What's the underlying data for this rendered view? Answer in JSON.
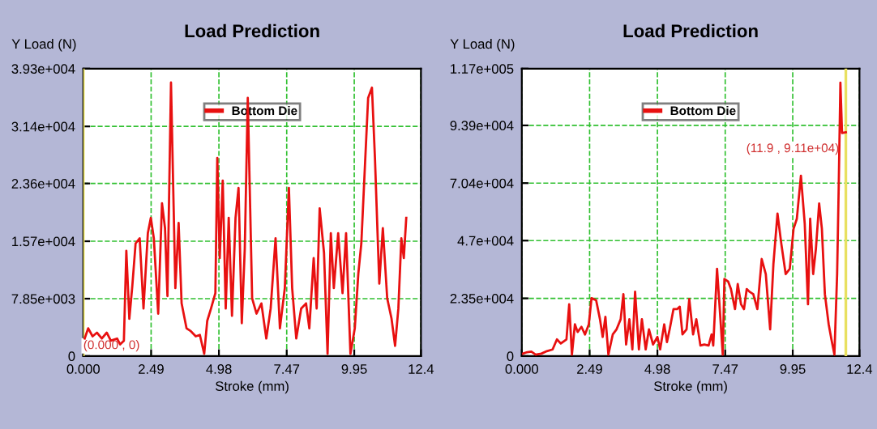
{
  "chart_data": [
    {
      "type": "line",
      "title": "Load Prediction",
      "xlabel": "Stroke (mm)",
      "ylabel": "Y Load (N)",
      "legend": "top",
      "grid": true,
      "line_style": "solid",
      "xlim": [
        0,
        12.4
      ],
      "xticks": [
        {
          "value": 0,
          "label": "0.000"
        },
        2.49,
        4.98,
        7.47,
        9.95,
        12.4
      ],
      "ylim": [
        0,
        39300
      ],
      "yticks": [
        0,
        {
          "value": 7850,
          "label": "7.85e+003"
        },
        {
          "value": 15700,
          "label": "1.57e+004"
        },
        {
          "value": 23600,
          "label": "2.36e+004"
        },
        {
          "value": 31400,
          "label": "3.14e+004"
        },
        {
          "value": 39300,
          "label": "3.93e+004"
        }
      ],
      "ref_lines": [
        {
          "axis": "x",
          "value": 0,
          "color": "#e8e060"
        }
      ],
      "annotations": [
        {
          "text": "(0.000 , 0)",
          "x": 0,
          "y": 0
        }
      ],
      "series": [
        {
          "name": "Bottom Die",
          "color": "#e81010",
          "x": [
            0.05,
            0.18,
            0.34,
            0.5,
            0.68,
            0.86,
            1.01,
            1.24,
            1.35,
            1.49,
            1.58,
            1.69,
            1.8,
            1.92,
            2.07,
            2.21,
            2.37,
            2.48,
            2.59,
            2.75,
            2.89,
            3.0,
            3.09,
            3.22,
            3.38,
            3.5,
            3.61,
            3.79,
            3.95,
            4.13,
            4.28,
            4.44,
            4.55,
            4.69,
            4.85,
            4.92,
            5.01,
            5.12,
            5.23,
            5.34,
            5.46,
            5.59,
            5.7,
            5.82,
            5.93,
            6.04,
            6.2,
            6.36,
            6.54,
            6.72,
            6.88,
            7.06,
            7.22,
            7.4,
            7.55,
            7.67,
            7.82,
            8.0,
            8.18,
            8.3,
            8.46,
            8.57,
            8.68,
            8.84,
            8.97,
            9.09,
            9.2,
            9.36,
            9.52,
            9.65,
            9.81,
            9.97,
            10.1,
            10.21,
            10.33,
            10.46,
            10.6,
            10.71,
            10.87,
            11.0,
            11.16,
            11.32,
            11.45,
            11.57,
            11.68,
            11.77,
            11.86
          ],
          "values": [
            2400,
            3800,
            2700,
            3200,
            2400,
            3200,
            2100,
            2400,
            1600,
            2100,
            14400,
            5100,
            9600,
            15400,
            16100,
            6500,
            16800,
            18900,
            16100,
            5800,
            20900,
            17500,
            8200,
            37400,
            9300,
            18200,
            7200,
            3800,
            3400,
            2700,
            2900,
            300,
            4800,
            6500,
            8600,
            27100,
            13400,
            24000,
            6500,
            18900,
            5500,
            18900,
            23000,
            4500,
            14700,
            35300,
            7900,
            5800,
            7200,
            2400,
            6500,
            16100,
            3800,
            9300,
            23000,
            9300,
            2400,
            6500,
            7200,
            3800,
            13400,
            6500,
            20200,
            14100,
            300,
            16800,
            9300,
            16800,
            8600,
            16800,
            300,
            3800,
            11300,
            15400,
            25000,
            35300,
            36700,
            27100,
            9900,
            17500,
            7900,
            5100,
            1400,
            6500,
            16100,
            13400,
            18900
          ]
        }
      ]
    },
    {
      "type": "line",
      "title": "Load Prediction",
      "xlabel": "Stroke (mm)",
      "ylabel": "Y Load (N)",
      "legend": "top",
      "grid": true,
      "line_style": "solid",
      "xlim": [
        0,
        12.4
      ],
      "xticks": [
        {
          "value": 0,
          "label": "0.000"
        },
        2.49,
        4.98,
        7.47,
        9.95,
        12.4
      ],
      "ylim": [
        0,
        117000
      ],
      "yticks": [
        0,
        {
          "value": 23500,
          "label": "2.35e+004"
        },
        {
          "value": 47000,
          "label": "4.7e+004"
        },
        {
          "value": 70400,
          "label": "7.04e+004"
        },
        {
          "value": 93900,
          "label": "9.39e+004"
        },
        {
          "value": 117000,
          "label": "1.17e+005"
        }
      ],
      "ref_lines": [
        {
          "axis": "x",
          "value": 11.9,
          "color": "#e8e060"
        }
      ],
      "annotations": [
        {
          "text": "(11.9 , 9.11e+04)",
          "x": 11.9,
          "y": 91100
        }
      ],
      "series": [
        {
          "name": "Bottom Die",
          "color": "#e81010",
          "x": [
            0.04,
            0.2,
            0.35,
            0.51,
            0.72,
            0.92,
            1.13,
            1.29,
            1.43,
            1.64,
            1.74,
            1.84,
            1.95,
            2.05,
            2.19,
            2.32,
            2.46,
            2.56,
            2.73,
            2.87,
            2.97,
            3.07,
            3.18,
            3.34,
            3.48,
            3.63,
            3.73,
            3.83,
            3.95,
            4.06,
            4.16,
            4.3,
            4.41,
            4.55,
            4.67,
            4.82,
            4.98,
            5.08,
            5.23,
            5.33,
            5.43,
            5.57,
            5.7,
            5.8,
            5.9,
            6.05,
            6.15,
            6.29,
            6.41,
            6.56,
            6.7,
            6.86,
            6.97,
            7.03,
            7.17,
            7.27,
            7.38,
            7.44,
            7.58,
            7.68,
            7.83,
            7.93,
            8.05,
            8.16,
            8.26,
            8.36,
            8.5,
            8.65,
            8.81,
            8.96,
            9.12,
            9.24,
            9.39,
            9.53,
            9.69,
            9.84,
            9.98,
            10.1,
            10.25,
            10.39,
            10.51,
            10.59,
            10.7,
            10.8,
            10.92,
            11.02,
            11.13,
            11.27,
            11.37,
            11.48,
            11.58,
            11.64,
            11.7,
            11.76,
            11.9
          ],
          "values": [
            1000,
            1600,
            1800,
            600,
            1000,
            2000,
            2700,
            6800,
            5100,
            6800,
            21100,
            600,
            12900,
            9800,
            11900,
            8800,
            12900,
            23600,
            22700,
            15000,
            7800,
            16000,
            600,
            8800,
            10900,
            15000,
            25200,
            4700,
            15000,
            2700,
            26200,
            2700,
            15000,
            2700,
            10900,
            4700,
            7800,
            2700,
            12900,
            5700,
            10900,
            19100,
            19100,
            20100,
            8800,
            10900,
            23200,
            8800,
            15000,
            4300,
            4700,
            4300,
            8800,
            4300,
            35500,
            19100,
            600,
            31400,
            30300,
            27300,
            19100,
            29300,
            21100,
            19100,
            27300,
            26200,
            25200,
            19100,
            39500,
            33400,
            10900,
            37500,
            58000,
            45700,
            33400,
            35500,
            51800,
            55900,
            73400,
            53900,
            21100,
            55900,
            33400,
            43600,
            62100,
            51800,
            25200,
            12900,
            6800,
            600,
            33400,
            70300,
            111300,
            90800,
            91100
          ]
        }
      ]
    }
  ]
}
